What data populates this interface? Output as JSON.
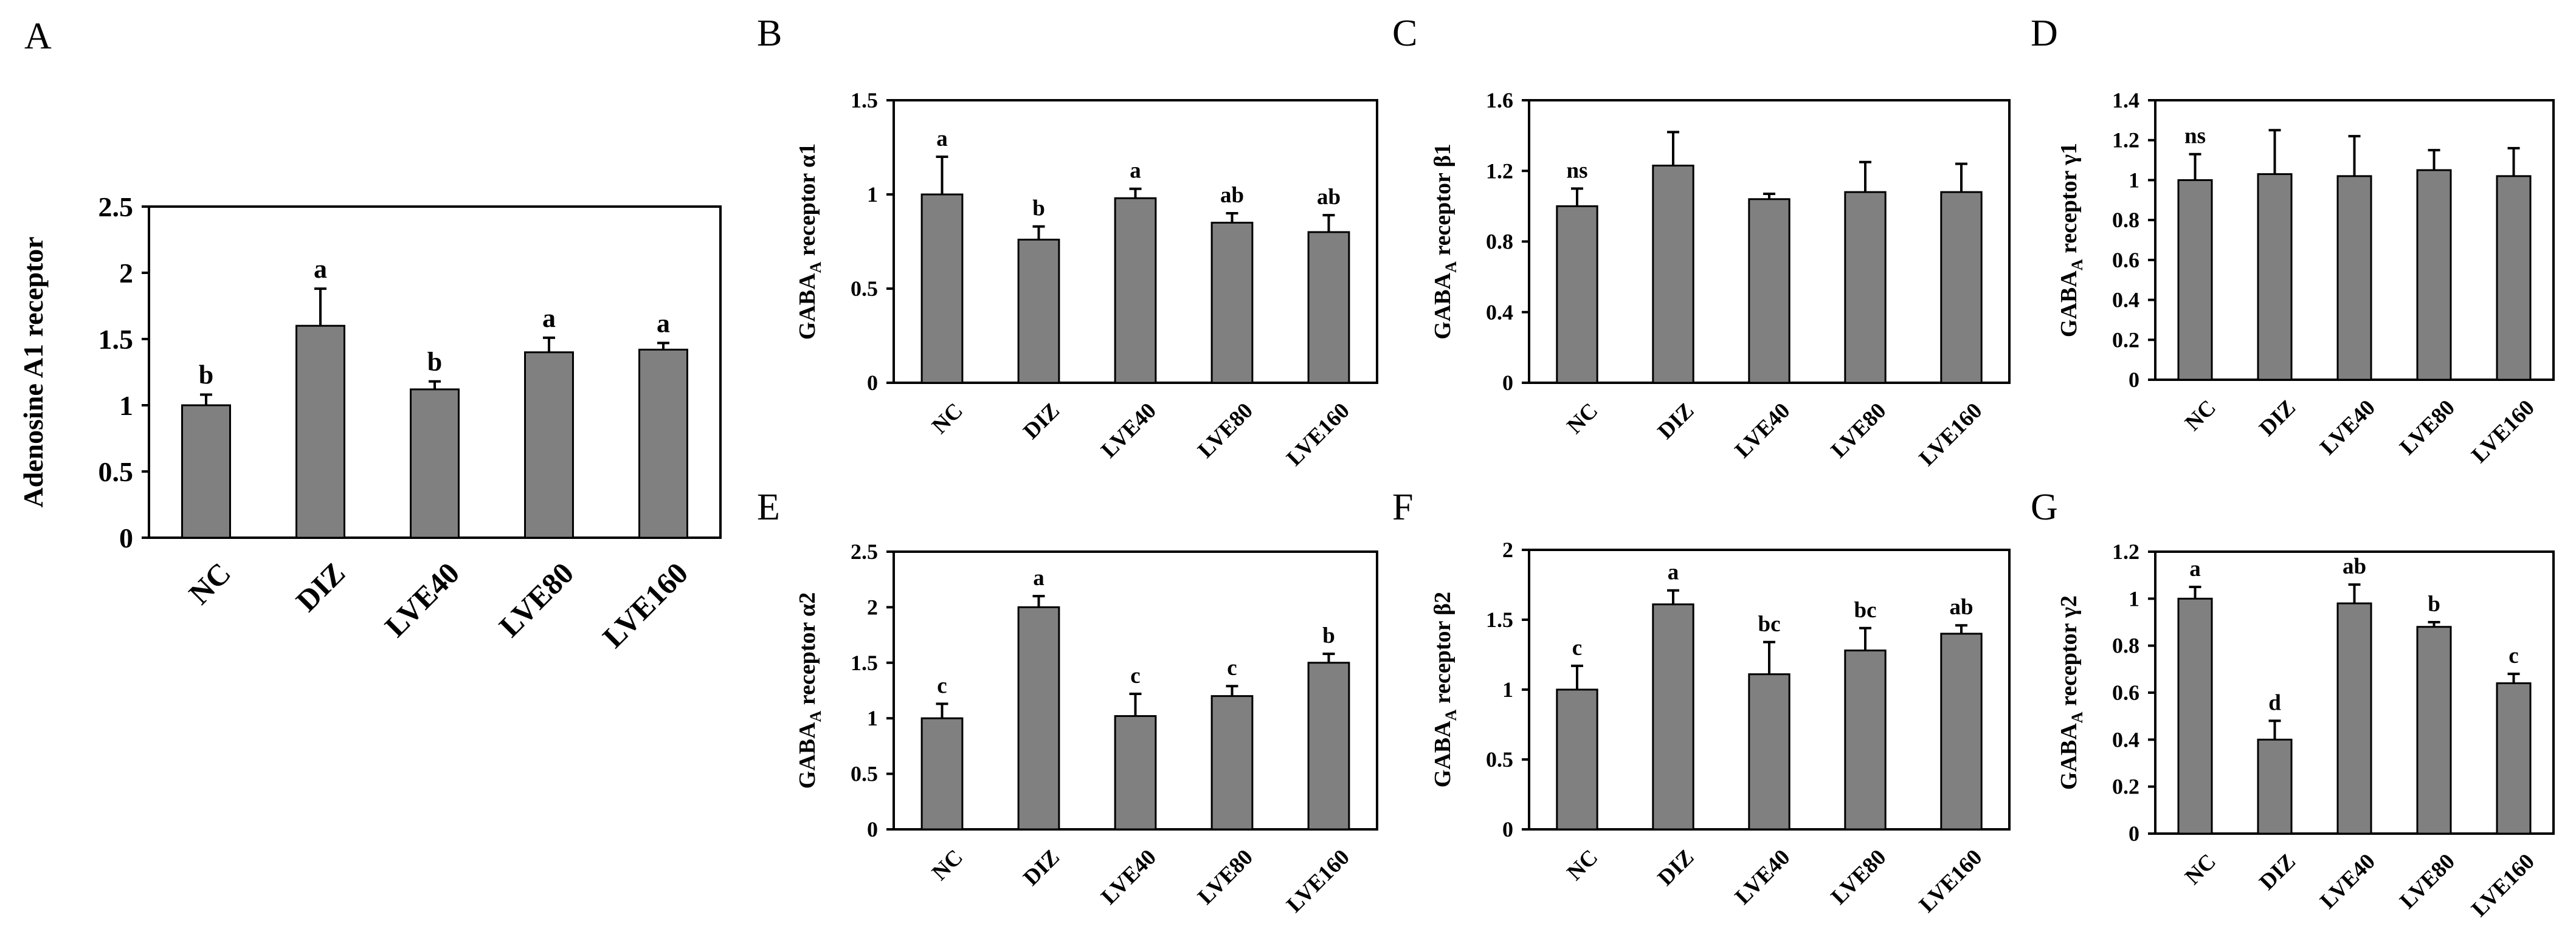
{
  "chart_data": [
    {
      "id": "A",
      "type": "bar",
      "panel_label": "A",
      "ylabel": "Adenosine A1 receptor",
      "ylabel_sub": "",
      "ylabel_rest": "",
      "categories": [
        "NC",
        "DIZ",
        "LVE40",
        "LVE80",
        "LVE160"
      ],
      "values": [
        1.0,
        1.6,
        1.12,
        1.4,
        1.42
      ],
      "errors": [
        0.08,
        0.28,
        0.06,
        0.11,
        0.05
      ],
      "significance": [
        "b",
        "a",
        "b",
        "a",
        "a"
      ],
      "ylim": [
        0,
        2.5
      ],
      "yticks": [
        "0",
        "0.5",
        "1",
        "1.5",
        "2",
        "2.5"
      ]
    },
    {
      "id": "B",
      "type": "bar",
      "panel_label": "B",
      "ylabel": "GABA",
      "ylabel_sub": "A",
      "ylabel_rest": " receptor α1",
      "categories": [
        "NC",
        "DIZ",
        "LVE40",
        "LVE80",
        "LVE160"
      ],
      "values": [
        1.0,
        0.76,
        0.98,
        0.85,
        0.8
      ],
      "errors": [
        0.2,
        0.07,
        0.05,
        0.05,
        0.09
      ],
      "significance": [
        "a",
        "b",
        "a",
        "ab",
        "ab"
      ],
      "ylim": [
        0,
        1.5
      ],
      "yticks": [
        "0",
        "0.5",
        "1",
        "1.5"
      ]
    },
    {
      "id": "C",
      "type": "bar",
      "panel_label": "C",
      "ylabel": "GABA",
      "ylabel_sub": "A",
      "ylabel_rest": " receptor β1",
      "categories": [
        "NC",
        "DIZ",
        "LVE40",
        "LVE80",
        "LVE160"
      ],
      "values": [
        1.0,
        1.23,
        1.04,
        1.08,
        1.08
      ],
      "errors": [
        0.1,
        0.19,
        0.03,
        0.17,
        0.16
      ],
      "significance": [
        "ns",
        "",
        "",
        "",
        ""
      ],
      "ylim": [
        0,
        1.6
      ],
      "yticks": [
        "0",
        "0.4",
        "0.8",
        "1.2",
        "1.6"
      ]
    },
    {
      "id": "D",
      "type": "bar",
      "panel_label": "D",
      "ylabel": "GABA",
      "ylabel_sub": "A",
      "ylabel_rest": " receptor γ1",
      "categories": [
        "NC",
        "DIZ",
        "LVE40",
        "LVE80",
        "LVE160"
      ],
      "values": [
        1.0,
        1.03,
        1.02,
        1.05,
        1.02
      ],
      "errors": [
        0.13,
        0.22,
        0.2,
        0.1,
        0.14
      ],
      "significance": [
        "ns",
        "",
        "",
        "",
        ""
      ],
      "ylim": [
        0,
        1.4
      ],
      "yticks": [
        "0",
        "0.2",
        "0.4",
        "0.6",
        "0.8",
        "1",
        "1.2",
        "1.4"
      ]
    },
    {
      "id": "E",
      "type": "bar",
      "panel_label": "E",
      "ylabel": "GABA",
      "ylabel_sub": "A",
      "ylabel_rest": " receptor α2",
      "categories": [
        "NC",
        "DIZ",
        "LVE40",
        "LVE80",
        "LVE160"
      ],
      "values": [
        1.0,
        2.0,
        1.02,
        1.2,
        1.5
      ],
      "errors": [
        0.13,
        0.1,
        0.2,
        0.09,
        0.08
      ],
      "significance": [
        "c",
        "a",
        "c",
        "c",
        "b"
      ],
      "ylim": [
        0,
        2.5
      ],
      "yticks": [
        "0",
        "0.5",
        "1",
        "1.5",
        "2",
        "2.5"
      ]
    },
    {
      "id": "F",
      "type": "bar",
      "panel_label": "F",
      "ylabel": "GABA",
      "ylabel_sub": "A",
      "ylabel_rest": " receptor β2",
      "categories": [
        "NC",
        "DIZ",
        "LVE40",
        "LVE80",
        "LVE160"
      ],
      "values": [
        1.0,
        1.61,
        1.11,
        1.28,
        1.4
      ],
      "errors": [
        0.17,
        0.1,
        0.23,
        0.16,
        0.06
      ],
      "significance": [
        "c",
        "a",
        "bc",
        "bc",
        "ab"
      ],
      "ylim": [
        0,
        2
      ],
      "yticks": [
        "0",
        "0.5",
        "1",
        "1.5",
        "2"
      ]
    },
    {
      "id": "G",
      "type": "bar",
      "panel_label": "G",
      "ylabel": "GABA",
      "ylabel_sub": "A",
      "ylabel_rest": " receptor γ2",
      "categories": [
        "NC",
        "DIZ",
        "LVE40",
        "LVE80",
        "LVE160"
      ],
      "values": [
        1.0,
        0.4,
        0.98,
        0.88,
        0.64
      ],
      "errors": [
        0.05,
        0.08,
        0.08,
        0.02,
        0.04
      ],
      "significance": [
        "a",
        "d",
        "ab",
        "b",
        "c"
      ],
      "ylim": [
        0,
        1.2
      ],
      "yticks": [
        "0",
        "0.2",
        "0.4",
        "0.6",
        "0.8",
        "1",
        "1.2"
      ]
    }
  ]
}
